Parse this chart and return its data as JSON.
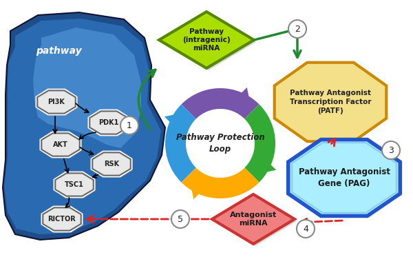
{
  "background_color": "#ffffff",
  "pathway_label": "pathway",
  "node_labels": [
    "PI3K",
    "PDK1",
    "AKT",
    "RSK",
    "TSC1",
    "RICTOR"
  ],
  "node_fill": "#e8e8e8",
  "node_edge": "#888888",
  "node_shadow": "#999999",
  "diamond_mirna_label": "Pathway\n(intragenic)\nmiRNA",
  "diamond_mirna_color": "#aadd00",
  "diamond_mirna_edge": "#558800",
  "diamond_antag_label": "Antagonist\nmiRNA",
  "diamond_antag_color": "#f08080",
  "diamond_antag_edge": "#cc3333",
  "octagon_patf_label": "Pathway Antagonist\nTranscription Factor\n(PATF)",
  "octagon_patf_color": "#f5e08a",
  "octagon_patf_edge": "#cc8800",
  "octagon_pag_label": "Pathway Antagonist\nGene (PAG)",
  "octagon_pag_color": "#aaeeff",
  "octagon_pag_edge": "#2255cc",
  "loop_label": "Pathway Protection\nLoop",
  "green_arrow_color": "#228833",
  "red_dashed_color": "#dd2222",
  "loop_purple": "#7755aa",
  "loop_green": "#33aa33",
  "loop_orange": "#ffaa00",
  "loop_red": "#ee5522",
  "loop_blue": "#3399dd",
  "blob_outer": "#1a3a7a",
  "blob_mid": "#2a6ab0",
  "blob_inner": "#5599cc"
}
